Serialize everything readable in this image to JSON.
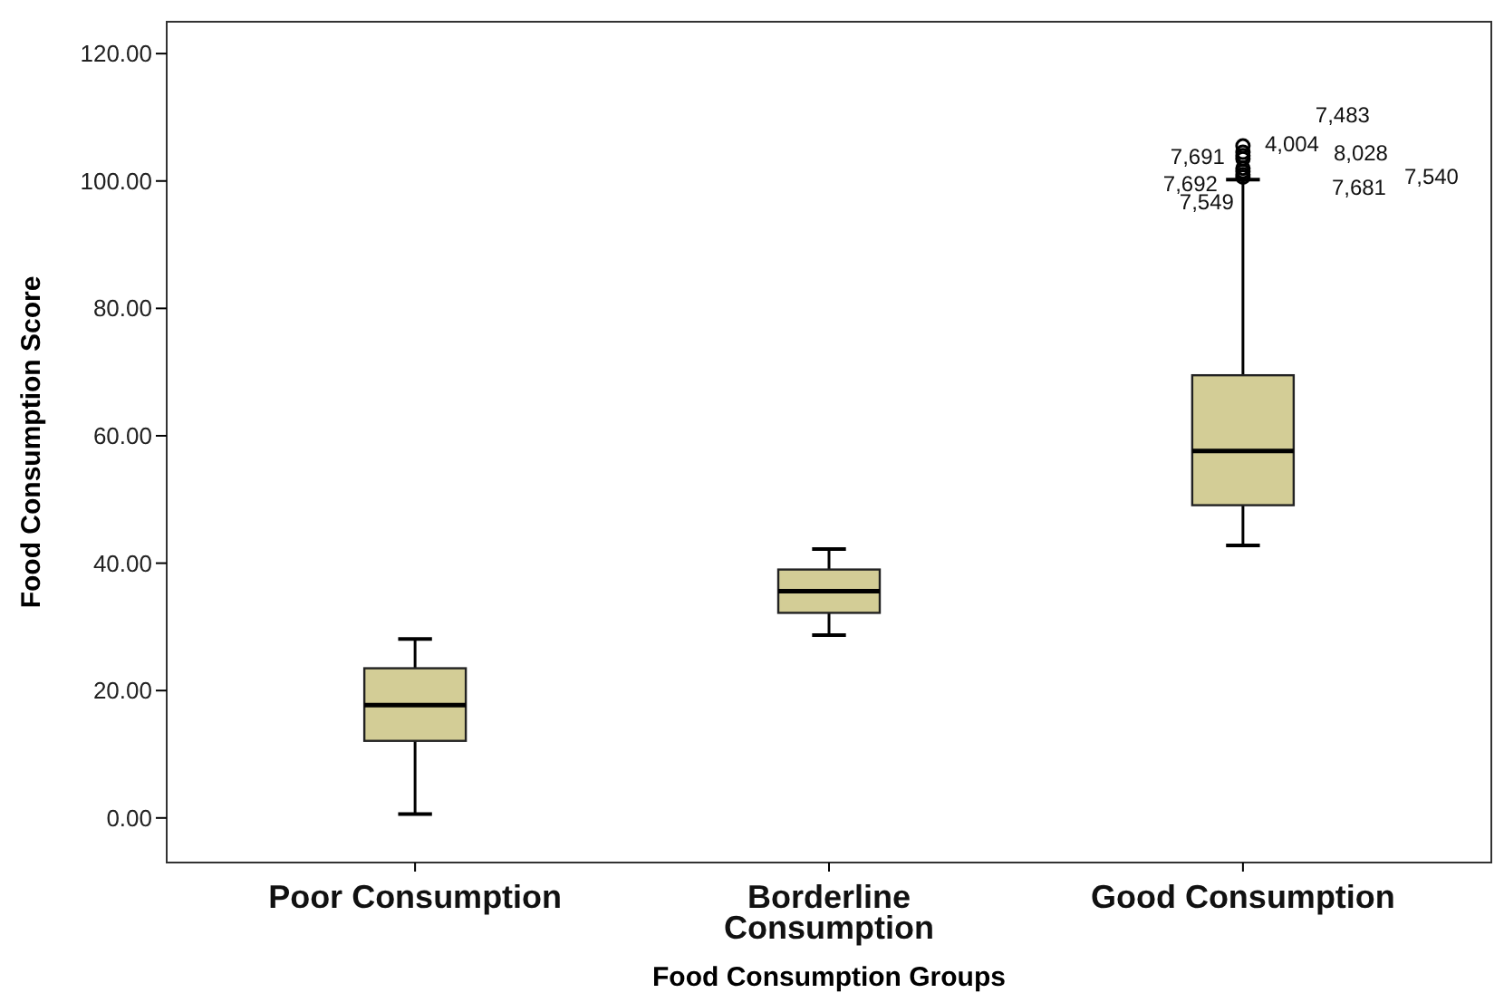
{
  "chart_data": {
    "type": "box",
    "xlabel": "Food Consumption Groups",
    "ylabel": "Food Consumption Score",
    "categories": [
      "Poor Consumption",
      "Borderline Consumption",
      "Good Consumption"
    ],
    "boxes": [
      {
        "low": 0.6,
        "q1": 12.1,
        "median": 17.7,
        "q3": 23.5,
        "high": 28.1
      },
      {
        "low": 28.7,
        "q1": 32.2,
        "median": 35.6,
        "q3": 39.0,
        "high": 42.2
      },
      {
        "low": 42.8,
        "q1": 49.1,
        "median": 57.6,
        "q3": 69.5,
        "high": 100.2,
        "outliers": [
          100.6,
          101,
          101.5,
          102,
          103.5,
          104,
          104.5,
          105.5
        ]
      }
    ],
    "color": "#d3cd96",
    "ylim": [
      -7,
      125
    ],
    "yticks": [
      {
        "value": 0,
        "label": "0.00"
      },
      {
        "value": 20,
        "label": "20.00"
      },
      {
        "value": 40,
        "label": "40.00"
      },
      {
        "value": 60,
        "label": "60.00"
      },
      {
        "value": 80,
        "label": "80.00"
      },
      {
        "value": 100,
        "label": "100.00"
      },
      {
        "value": 120,
        "label": "120.00"
      }
    ],
    "annotations": [
      "7,483",
      "7,691",
      "4,004",
      "8,028",
      "7,692",
      "7,549",
      "7,681",
      "7,540"
    ],
    "grid": false
  }
}
